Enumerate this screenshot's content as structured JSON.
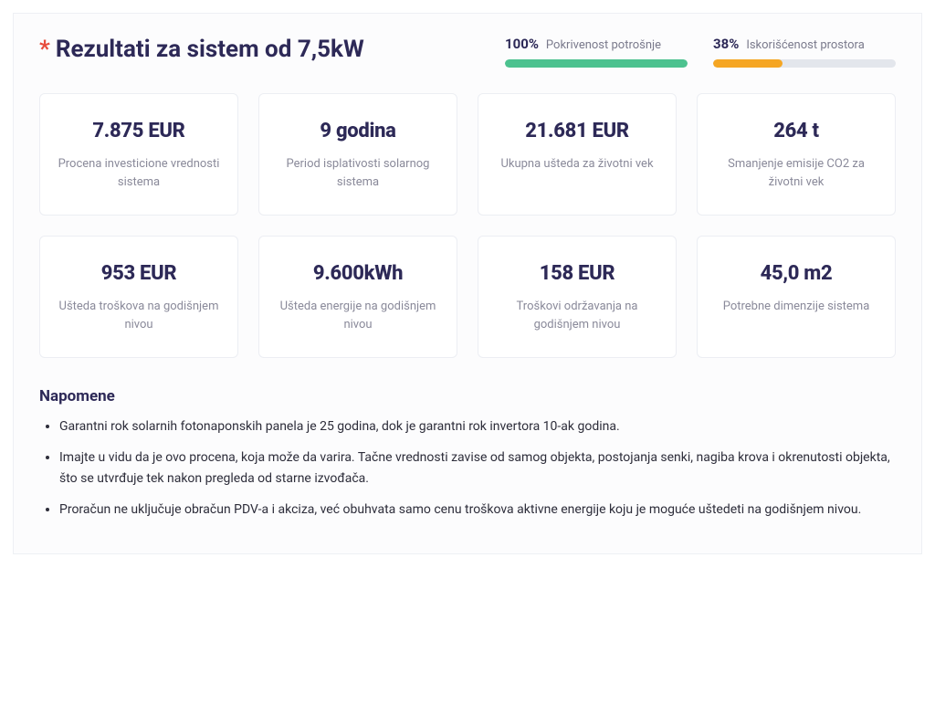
{
  "header": {
    "asterisk": "*",
    "title": "Rezultati za sistem od 7,5kW"
  },
  "progress": [
    {
      "percent_label": "100%",
      "label": "Pokrivenost potrošnje",
      "percent": 100,
      "color": "#4cc28f"
    },
    {
      "percent_label": "38%",
      "label": "Iskorišćenost prostora",
      "percent": 38,
      "color": "#f5a623"
    }
  ],
  "cards": [
    {
      "value": "7.875 EUR",
      "label": "Procena investicione vrednosti sistema"
    },
    {
      "value": "9 godina",
      "label": "Period isplativosti solarnog sistema"
    },
    {
      "value": "21.681 EUR",
      "label": "Ukupna ušteda za životni vek"
    },
    {
      "value": "264 t",
      "label": "Smanjenje emisije CO2 za životni vek"
    },
    {
      "value": "953 EUR",
      "label": "Ušteda troškova na godišnjem nivou"
    },
    {
      "value": "9.600kWh",
      "label": "Ušteda energije na godišnjem nivou"
    },
    {
      "value": "158 EUR",
      "label": "Troškovi održavanja na godišnjem nivou"
    },
    {
      "value": "45,0 m2",
      "label": "Potrebne dimenzije sistema"
    }
  ],
  "notes": {
    "title": "Napomene",
    "items": [
      "Garantni rok solarnih fotonaponskih panela je 25 godina, dok je garantni rok invertora 10-ak godina.",
      "Imajte u vidu da je ovo procena, koja može da varira. Tačne vrednosti zavise od samog objekta, postojanja senki, nagiba krova i okrenutosti objekta, što se utvrđuje tek nakon pregleda od starne izvođača.",
      "Proračun ne uključuje obračun PDV-a i akciza, već obuhvata samo cenu troškova aktivne energije koju je moguće uštedeti na godišnjem nivou."
    ]
  },
  "colors": {
    "heading": "#2d2957",
    "muted": "#8a8a9a",
    "track": "#e3e6ec",
    "card_border": "#eceef3",
    "asterisk": "#e74c3c"
  }
}
